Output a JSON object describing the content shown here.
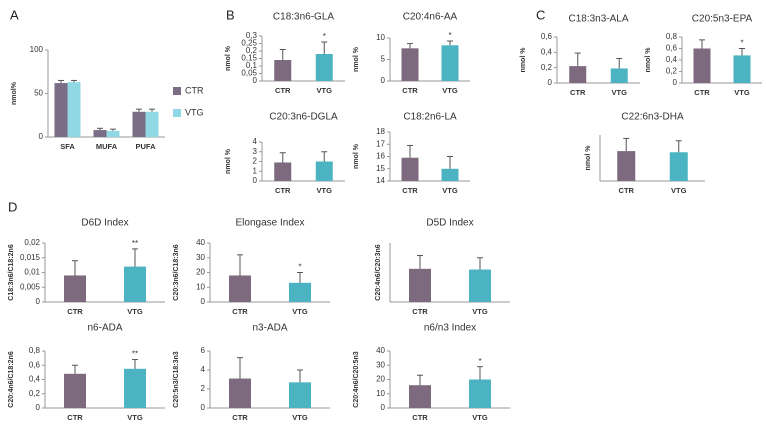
{
  "panel_labels": [
    "A",
    "B",
    "C",
    "D"
  ],
  "chart_data": [
    {
      "type": "bar",
      "ylabel": "nmol%",
      "categories": [
        "SFA",
        "MUFA",
        "PUFA"
      ],
      "series": [
        {
          "name": "CTR",
          "color": "#7b6d85",
          "values": [
            62,
            8,
            29
          ],
          "errors": [
            3,
            2,
            3
          ]
        },
        {
          "name": "VTG",
          "color": "#8fd8e4",
          "values": [
            63,
            7,
            29
          ],
          "errors": [
            2,
            2,
            3
          ]
        }
      ],
      "ylim": [
        0,
        100
      ],
      "yticks": [
        0,
        50,
        100
      ]
    },
    {
      "type": "bar",
      "title": "C18:3n6-GLA",
      "ylabel": "nmol %",
      "categories": [
        "CTR",
        "VTG"
      ],
      "colors": [
        "#7d6a7f",
        "#4bb3c1"
      ],
      "values": [
        0.14,
        0.18
      ],
      "errors": [
        0.07,
        0.08
      ],
      "annotations": [
        null,
        "*"
      ],
      "ylim": [
        0,
        0.3
      ],
      "yticks": [
        0,
        {
          "value": 0.05,
          "label": "0,05"
        },
        {
          "value": 0.1,
          "label": "0,1"
        },
        {
          "value": 0.15,
          "label": "0,15"
        },
        {
          "value": 0.2,
          "label": "0,2"
        },
        {
          "value": 0.25,
          "label": "0,25"
        },
        {
          "value": 0.3,
          "label": "0,3"
        }
      ]
    },
    {
      "type": "bar",
      "title": "C20:4n6-AA",
      "ylabel": "nmol %",
      "categories": [
        "CTR",
        "VTG"
      ],
      "colors": [
        "#7d6a7f",
        "#4bb3c1"
      ],
      "values": [
        7.6,
        8.3
      ],
      "errors": [
        1.1,
        1.0
      ],
      "annotations": [
        null,
        "*"
      ],
      "ylim": [
        0,
        10
      ],
      "yticks": [
        0,
        5,
        10
      ]
    },
    {
      "type": "bar",
      "title": "C20:3n6-DGLA",
      "ylabel": "nmol %",
      "categories": [
        "CTR",
        "VTG"
      ],
      "colors": [
        "#7d6a7f",
        "#4bb3c1"
      ],
      "values": [
        1.9,
        2.0
      ],
      "errors": [
        1.0,
        1.0
      ],
      "ylim": [
        0,
        4
      ],
      "yticks": [
        0,
        1,
        2,
        3,
        4
      ]
    },
    {
      "type": "bar",
      "title": "C18:2n6-LA",
      "ylabel": "nmol %",
      "categories": [
        "CTR",
        "VTG"
      ],
      "colors": [
        "#7d6a7f",
        "#4bb3c1"
      ],
      "values": [
        15.9,
        15.0
      ],
      "errors": [
        1.0,
        1.0
      ],
      "ylim": [
        14,
        18
      ],
      "yticks": [
        14,
        15,
        16,
        17,
        18
      ]
    },
    {
      "type": "bar",
      "title": "C18:3n3-ALA",
      "ylabel": "nmol %",
      "categories": [
        "CTR",
        "VTG"
      ],
      "colors": [
        "#7d6a7f",
        "#4bb3c1"
      ],
      "values": [
        0.22,
        0.19
      ],
      "errors": [
        0.17,
        0.13
      ],
      "ylim": [
        0,
        0.6
      ],
      "yticks": [
        0,
        {
          "value": 0.2,
          "label": "0,2"
        },
        {
          "value": 0.4,
          "label": "0,4"
        },
        {
          "value": 0.6,
          "label": "0,6"
        }
      ]
    },
    {
      "type": "bar",
      "title": "C20:5n3-EPA",
      "ylabel": "nmol %",
      "categories": [
        "CTR",
        "VTG"
      ],
      "colors": [
        "#7d6a7f",
        "#4bb3c1"
      ],
      "values": [
        0.6,
        0.48
      ],
      "errors": [
        0.15,
        0.12
      ],
      "annotations": [
        null,
        "*"
      ],
      "ylim": [
        0,
        0.8
      ],
      "yticks": [
        0,
        {
          "value": 0.2,
          "label": "0,2"
        },
        {
          "value": 0.4,
          "label": "0,4"
        },
        {
          "value": 0.6,
          "label": "0,6"
        },
        {
          "value": 0.8,
          "label": "0,8"
        }
      ]
    },
    {
      "type": "bar",
      "title": "C22:6n3-DHA",
      "ylabel": "nmol %",
      "categories": [
        "CTR",
        "VTG"
      ],
      "colors": [
        "#7d6a7f",
        "#4bb3c1"
      ],
      "values": [
        2.6,
        2.5
      ],
      "errors": [
        1.1,
        1.0
      ],
      "ylim": [
        0,
        4
      ]
    },
    {
      "type": "bar",
      "title": "D6D Index",
      "ylabel": "C18:3n6/C18:2n6",
      "categories": [
        "CTR",
        "VTG"
      ],
      "colors": [
        "#7d6a7f",
        "#4bb3c1"
      ],
      "values": [
        0.009,
        0.012
      ],
      "errors": [
        0.005,
        0.006
      ],
      "annotations": [
        null,
        "**"
      ],
      "ylim": [
        0,
        0.02
      ],
      "yticks": [
        0,
        {
          "value": 0.005,
          "label": "0,005"
        },
        {
          "value": 0.01,
          "label": "0,01"
        },
        {
          "value": 0.015,
          "label": "0,015"
        },
        {
          "value": 0.02,
          "label": "0,02"
        }
      ]
    },
    {
      "type": "bar",
      "title": "Elongase Index",
      "ylabel": "C20:3n6/C18:3n6",
      "categories": [
        "CTR",
        "VTG"
      ],
      "colors": [
        "#7d6a7f",
        "#4bb3c1"
      ],
      "values": [
        18,
        13
      ],
      "errors": [
        14,
        7
      ],
      "annotations": [
        null,
        "*"
      ],
      "ylim": [
        0,
        40
      ],
      "yticks": [
        0,
        10,
        20,
        30,
        40
      ]
    },
    {
      "type": "bar",
      "title": "D5D Index",
      "ylabel": "C20:4n6/C20:3n6",
      "categories": [
        "CTR",
        "VTG"
      ],
      "colors": [
        "#7d6a7f",
        "#4bb3c1"
      ],
      "values": [
        4.5,
        4.4
      ],
      "errors": [
        1.8,
        1.6
      ],
      "ylim": [
        0,
        8
      ]
    },
    {
      "type": "bar",
      "title": "n6-ADA",
      "ylabel": "C20:4n6/C18:2n6",
      "categories": [
        "CTR",
        "VTG"
      ],
      "colors": [
        "#7d6a7f",
        "#4bb3c1"
      ],
      "values": [
        0.48,
        0.55
      ],
      "errors": [
        0.12,
        0.13
      ],
      "annotations": [
        null,
        "**"
      ],
      "ylim": [
        0,
        0.8
      ],
      "yticks": [
        0,
        {
          "value": 0.2,
          "label": "0,2"
        },
        {
          "value": 0.4,
          "label": "0,4"
        },
        {
          "value": 0.6,
          "label": "0,6"
        },
        {
          "value": 0.8,
          "label": "0,8"
        }
      ]
    },
    {
      "type": "bar",
      "title": "n3-ADA",
      "ylabel": "C20:5n3/C18:3n3",
      "categories": [
        "CTR",
        "VTG"
      ],
      "colors": [
        "#7d6a7f",
        "#4bb3c1"
      ],
      "values": [
        3.1,
        2.7
      ],
      "errors": [
        2.2,
        1.3
      ],
      "ylim": [
        0,
        6
      ],
      "yticks": [
        0,
        2,
        4,
        6
      ]
    },
    {
      "type": "bar",
      "title": "n6/n3 Index",
      "ylabel": "C20:4n6/C20:5n3",
      "categories": [
        "CTR",
        "VTG"
      ],
      "colors": [
        "#7d6a7f",
        "#4bb3c1"
      ],
      "values": [
        16,
        20
      ],
      "errors": [
        7,
        9
      ],
      "annotations": [
        null,
        "*"
      ],
      "ylim": [
        0,
        40
      ],
      "yticks": [
        0,
        10,
        20,
        30,
        40
      ]
    }
  ]
}
